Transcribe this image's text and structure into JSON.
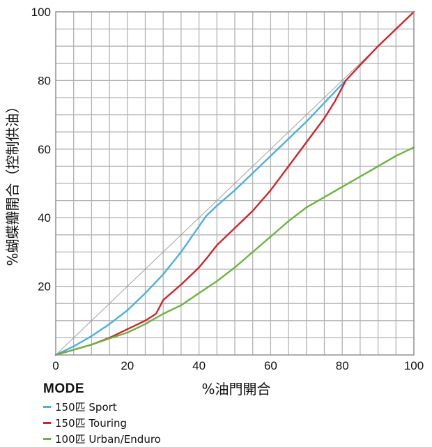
{
  "chart_data": {
    "type": "line",
    "xlabel": "%油門開合",
    "ylabel": "%蝴蝶瓣開合（控制供油）",
    "xlim": [
      0,
      100
    ],
    "ylim": [
      0,
      100
    ],
    "xticks": [
      0,
      20,
      40,
      60,
      80,
      100
    ],
    "yticks": [
      20,
      40,
      60,
      80,
      100
    ],
    "grid": true,
    "legend_title": "MODE",
    "reference_line": {
      "x": [
        0,
        100
      ],
      "y": [
        0,
        100
      ],
      "color": "#a0a0a0"
    },
    "series": [
      {
        "name": "150匹 Sport",
        "color": "#4bafe0",
        "x": [
          0,
          5,
          10,
          15,
          20,
          25,
          30,
          35,
          40,
          42,
          45,
          50,
          55,
          60,
          65,
          70,
          75,
          80,
          81
        ],
        "y": [
          0,
          2.5,
          5.5,
          9,
          13,
          18,
          23.5,
          30,
          37.5,
          40.5,
          43.5,
          48,
          53,
          58,
          63,
          68,
          73.5,
          79,
          80
        ]
      },
      {
        "name": "150匹 Touring",
        "color": "#d2232a",
        "x": [
          0,
          5,
          10,
          15,
          20,
          25,
          28,
          29,
          30,
          35,
          40,
          42,
          45,
          50,
          55,
          60,
          65,
          70,
          75,
          78,
          80,
          81,
          85,
          90,
          95,
          100
        ],
        "y": [
          0,
          1.5,
          3,
          5,
          7.5,
          10,
          12,
          14,
          16,
          20.5,
          25.5,
          28,
          32,
          37,
          42,
          48,
          55,
          62,
          69,
          74,
          78,
          80,
          84.5,
          90,
          95,
          100
        ]
      },
      {
        "name": "100匹 Urban/Enduro",
        "color": "#6db33f",
        "x": [
          0,
          5,
          10,
          15,
          20,
          25,
          30,
          35,
          40,
          45,
          50,
          55,
          60,
          65,
          70,
          75,
          80,
          85,
          90,
          95,
          100
        ],
        "y": [
          0,
          1.5,
          3,
          4.8,
          6.5,
          9,
          12,
          14.5,
          18,
          21.5,
          25.5,
          30,
          34.5,
          39,
          43,
          46,
          49,
          52,
          55,
          58,
          60.5
        ]
      }
    ]
  }
}
